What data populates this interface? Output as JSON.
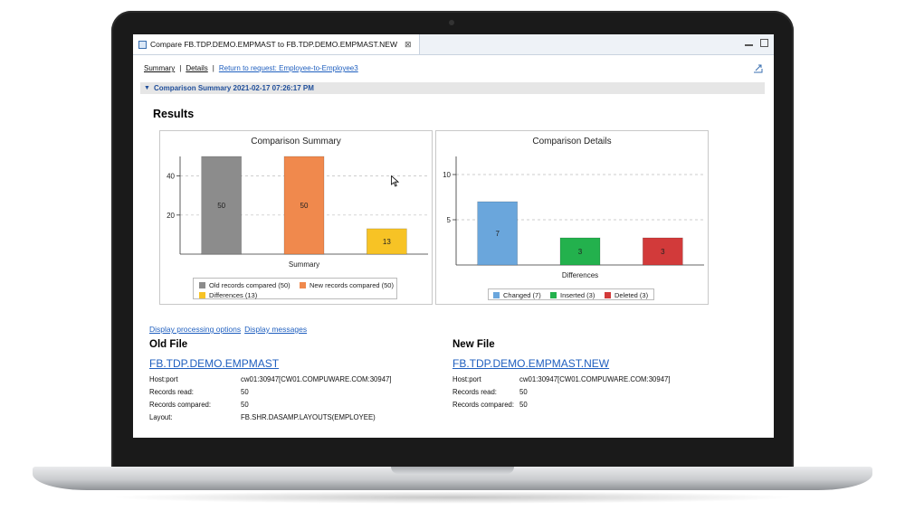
{
  "window": {
    "tab_title": "Compare FB.TDP.DEMO.EMPMAST to FB.TDP.DEMO.EMPMAST.NEW",
    "close_glyph": "⊠"
  },
  "nav": {
    "summary": "Summary",
    "sep1": "|",
    "details": "Details",
    "sep2": "|",
    "return_link": "Return to request: Employee-to-Employee3"
  },
  "section": {
    "title": "Comparison Summary 2021-02-17 07:26:17 PM"
  },
  "results_heading": "Results",
  "chart_data": [
    {
      "type": "bar",
      "title": "Comparison Summary",
      "xlabel": "Summary",
      "ylabel": "",
      "ylim": [
        0,
        50
      ],
      "yticks": [
        20,
        40
      ],
      "grid": true,
      "series": [
        {
          "name": "Old records compared (50)",
          "value": 50,
          "label": "50",
          "color": "#8c8c8c"
        },
        {
          "name": "New records compared (50)",
          "value": 50,
          "label": "50",
          "color": "#f0894d"
        },
        {
          "name": "Differences (13)",
          "value": 13,
          "label": "13",
          "color": "#f7c325"
        }
      ],
      "legend_position": "bottom"
    },
    {
      "type": "bar",
      "title": "Comparison Details",
      "xlabel": "Differences",
      "ylabel": "",
      "ylim": [
        0,
        12
      ],
      "yticks": [
        5,
        10
      ],
      "grid": true,
      "series": [
        {
          "name": "Changed (7)",
          "value": 7,
          "label": "7",
          "color": "#6aa6dc"
        },
        {
          "name": "Inserted (3)",
          "value": 3,
          "label": "3",
          "color": "#23b14d"
        },
        {
          "name": "Deleted (3)",
          "value": 3,
          "label": "3",
          "color": "#d23a3a"
        }
      ],
      "legend_position": "bottom"
    }
  ],
  "links": {
    "processing_options": "Display processing options",
    "messages": "Display messages"
  },
  "old_file": {
    "heading": "Old File",
    "name": "FB.TDP.DEMO.EMPMAST",
    "rows": [
      {
        "key": "Host:port",
        "value": "cw01:30947[CW01.COMPUWARE.COM:30947]"
      },
      {
        "key": "Records read:",
        "value": "50"
      },
      {
        "key": "Records compared:",
        "value": "50"
      },
      {
        "key": "Layout:",
        "value": "FB.SHR.DASAMP.LAYOUTS(EMPLOYEE)"
      }
    ]
  },
  "new_file": {
    "heading": "New File",
    "name": "FB.TDP.DEMO.EMPMAST.NEW",
    "rows": [
      {
        "key": "Host:port",
        "value": "cw01:30947[CW01.COMPUWARE.COM:30947]"
      },
      {
        "key": "Records read:",
        "value": "50"
      },
      {
        "key": "Records compared:",
        "value": "50"
      }
    ]
  }
}
